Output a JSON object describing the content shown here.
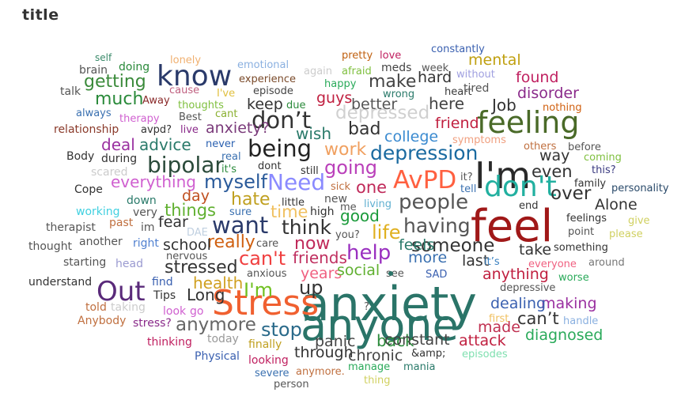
{
  "chart_data": {
    "type": "wordcloud",
    "title": "title",
    "words": [
      {
        "text": "anxiety",
        "weight": 100,
        "color": "#2a7468"
      },
      {
        "text": "anyone",
        "weight": 88,
        "color": "#2a7468"
      },
      {
        "text": "feel",
        "weight": 92,
        "color": "#a01818"
      },
      {
        "text": "I'm",
        "weight": 70,
        "color": "#2a2a2a"
      },
      {
        "text": "Stress",
        "weight": 66,
        "color": "#f06030"
      },
      {
        "text": "feeling",
        "weight": 55,
        "color": "#4a6a28"
      },
      {
        "text": "know",
        "weight": 50,
        "color": "#2a3a6a"
      },
      {
        "text": "don't",
        "weight": 50,
        "color": "#22b0a0"
      },
      {
        "text": "Out",
        "weight": 45,
        "color": "#5a2a7a"
      },
      {
        "text": "AvPD",
        "weight": 40,
        "color": "#ff6040"
      },
      {
        "text": "being",
        "weight": 36,
        "color": "#222222"
      },
      {
        "text": "don’t",
        "weight": 36,
        "color": "#333333"
      },
      {
        "text": "want",
        "weight": 36,
        "color": "#2a3a6a"
      },
      {
        "text": "bipolar",
        "weight": 34,
        "color": "#2a4a3a"
      },
      {
        "text": "Need",
        "weight": 34,
        "color": "#8a8aff"
      },
      {
        "text": "people",
        "weight": 30,
        "color": "#555555"
      },
      {
        "text": "help",
        "weight": 30,
        "color": "#9a30c0"
      },
      {
        "text": "depression",
        "weight": 28,
        "color": "#1a6aa0"
      },
      {
        "text": "think",
        "weight": 28,
        "color": "#333333"
      },
      {
        "text": "having",
        "weight": 28,
        "color": "#555555"
      },
      {
        "text": "going",
        "weight": 26,
        "color": "#ba40ba"
      },
      {
        "text": "myself",
        "weight": 26,
        "color": "#2a5a9a"
      },
      {
        "text": "life",
        "weight": 26,
        "color": "#e0b020"
      },
      {
        "text": "stop",
        "weight": 26,
        "color": "#2a6a8a"
      },
      {
        "text": "I'm",
        "weight": 26,
        "color": "#70c020"
      },
      {
        "text": "up",
        "weight": 24,
        "color": "#333333"
      },
      {
        "text": "can't",
        "weight": 24,
        "color": "#f04040"
      },
      {
        "text": "someone",
        "weight": 22,
        "color": "#333333"
      },
      {
        "text": "depressed",
        "weight": 22,
        "color": "#d0d0d0"
      },
      {
        "text": "anymore",
        "weight": 22,
        "color": "#666666"
      },
      {
        "text": "over",
        "weight": 22,
        "color": "#333333"
      },
      {
        "text": "much",
        "weight": 20,
        "color": "#2a8a3a"
      },
      {
        "text": "getting",
        "weight": 20,
        "color": "#3a8a3a"
      },
      {
        "text": "work",
        "weight": 20,
        "color": "#f0a060"
      },
      {
        "text": "bad",
        "weight": 20,
        "color": "#333333"
      },
      {
        "text": "now",
        "weight": 20,
        "color": "#c02a5a"
      },
      {
        "text": "hate",
        "weight": 20,
        "color": "#c0a020"
      },
      {
        "text": "stressed",
        "weight": 20,
        "color": "#333333"
      },
      {
        "text": "really",
        "weight": 20,
        "color": "#d06010"
      },
      {
        "text": "make",
        "weight": 20,
        "color": "#444444"
      },
      {
        "text": "time",
        "weight": 18,
        "color": "#f0c060"
      },
      {
        "text": "one",
        "weight": 18,
        "color": "#c02a5a"
      },
      {
        "text": "things",
        "weight": 18,
        "color": "#60b030"
      },
      {
        "text": "even",
        "weight": 18,
        "color": "#333333"
      },
      {
        "text": "can’t",
        "weight": 18,
        "color": "#333333"
      },
      {
        "text": "deal",
        "weight": 16,
        "color": "#9a30a0"
      },
      {
        "text": "advice",
        "weight": 16,
        "color": "#2a7a6a"
      },
      {
        "text": "wish",
        "weight": 16,
        "color": "#2a7a6a"
      },
      {
        "text": "good",
        "weight": 16,
        "color": "#1a9a3a"
      },
      {
        "text": "health",
        "weight": 16,
        "color": "#d0a020"
      },
      {
        "text": "friends",
        "weight": 16,
        "color": "#c03060"
      },
      {
        "text": "Job",
        "weight": 16,
        "color": "#333333"
      },
      {
        "text": "everything",
        "weight": 16,
        "color": "#d060d0"
      },
      {
        "text": "Long",
        "weight": 16,
        "color": "#333333"
      },
      {
        "text": "here",
        "weight": 16,
        "color": "#444444"
      },
      {
        "text": "back",
        "weight": 16,
        "color": "#2a8a3a"
      },
      {
        "text": "years",
        "weight": 15,
        "color": "#f06080"
      },
      {
        "text": "through",
        "weight": 15,
        "color": "#333333"
      },
      {
        "text": "anything",
        "weight": 15,
        "color": "#c02040"
      },
      {
        "text": "attack",
        "weight": 15,
        "color": "#c02040"
      },
      {
        "text": "guys",
        "weight": 15,
        "color": "#c02040"
      },
      {
        "text": "better",
        "weight": 15,
        "color": "#555555"
      },
      {
        "text": "keep",
        "weight": 15,
        "color": "#333333"
      },
      {
        "text": "anxiety?",
        "weight": 15,
        "color": "#7a3a7a"
      },
      {
        "text": "friend",
        "weight": 15,
        "color": "#c02040"
      },
      {
        "text": "college",
        "weight": 15,
        "color": "#3a8ad0"
      },
      {
        "text": "panic",
        "weight": 14,
        "color": "#444444"
      },
      {
        "text": "chronic",
        "weight": 14,
        "color": "#444444"
      },
      {
        "text": "constant",
        "weight": 14,
        "color": "#444444"
      },
      {
        "text": "social",
        "weight": 14,
        "color": "#60b030"
      },
      {
        "text": "more",
        "weight": 14,
        "color": "#3a70b0"
      },
      {
        "text": "feels",
        "weight": 14,
        "color": "#2a7a6a"
      },
      {
        "text": "last",
        "weight": 14,
        "color": "#333333"
      },
      {
        "text": "school",
        "weight": 14,
        "color": "#333333"
      },
      {
        "text": "fear",
        "weight": 14,
        "color": "#333333"
      },
      {
        "text": "day",
        "weight": 14,
        "color": "#c05020"
      },
      {
        "text": "Alone",
        "weight": 14,
        "color": "#333333"
      },
      {
        "text": "take",
        "weight": 14,
        "color": "#333333"
      },
      {
        "text": "way",
        "weight": 14,
        "color": "#333333"
      },
      {
        "text": "hard",
        "weight": 14,
        "color": "#333333"
      },
      {
        "text": "found",
        "weight": 14,
        "color": "#c02060"
      },
      {
        "text": "disorder",
        "weight": 14,
        "color": "#8a2a8a"
      },
      {
        "text": "mental",
        "weight": 14,
        "color": "#c0a010"
      },
      {
        "text": "made",
        "weight": 14,
        "color": "#c03050"
      },
      {
        "text": "making",
        "weight": 14,
        "color": "#9a30a0"
      },
      {
        "text": "dealing",
        "weight": 14,
        "color": "#3a60b0"
      },
      {
        "text": "diagnosed",
        "weight": 14,
        "color": "#2aaa5a"
      }
    ]
  }
}
